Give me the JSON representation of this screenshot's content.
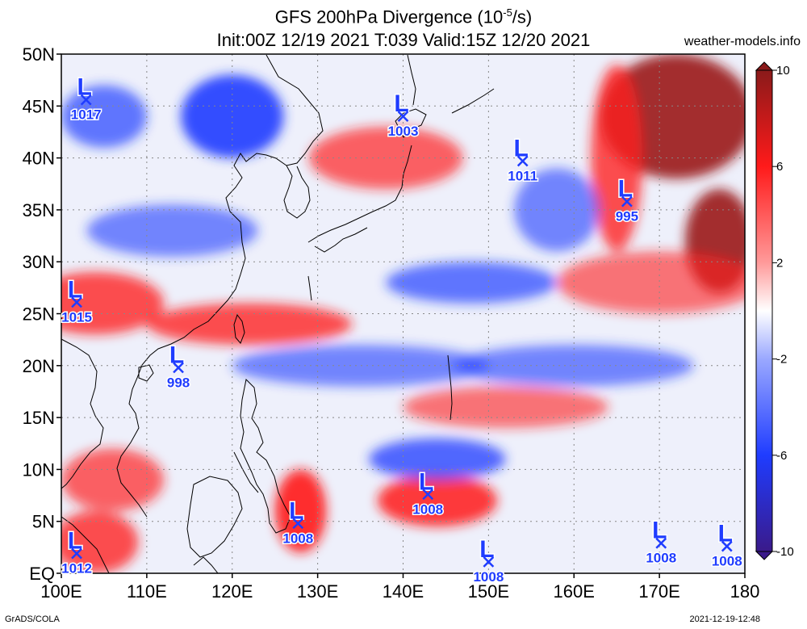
{
  "title": {
    "line1_prefix": "GFS 200hPa Divergence (10",
    "line1_exp": "-5",
    "line1_suffix": "/s)",
    "line2": "Init:00Z 12/19 2021 T:039 Valid:15Z 12/20 2021"
  },
  "site": "weather-models.info",
  "footer": {
    "left": "GrADS/COLA",
    "right": "2021-12-19-12:48"
  },
  "lat_labels": [
    {
      "value": 50,
      "text": "50N"
    },
    {
      "value": 45,
      "text": "45N"
    },
    {
      "value": 40,
      "text": "40N"
    },
    {
      "value": 35,
      "text": "35N"
    },
    {
      "value": 30,
      "text": "30N"
    },
    {
      "value": 25,
      "text": "25N"
    },
    {
      "value": 20,
      "text": "20N"
    },
    {
      "value": 15,
      "text": "15N"
    },
    {
      "value": 10,
      "text": "10N"
    },
    {
      "value": 5,
      "text": "5N"
    },
    {
      "value": 0,
      "text": "EQ"
    }
  ],
  "lon_labels": [
    {
      "value": 100,
      "text": "100E"
    },
    {
      "value": 110,
      "text": "110E"
    },
    {
      "value": 120,
      "text": "120E"
    },
    {
      "value": 130,
      "text": "130E"
    },
    {
      "value": 140,
      "text": "140E"
    },
    {
      "value": 150,
      "text": "150E"
    },
    {
      "value": 160,
      "text": "160E"
    },
    {
      "value": 170,
      "text": "170E"
    },
    {
      "value": 180,
      "text": "180"
    }
  ],
  "colorbar": {
    "min": -10,
    "max": 10,
    "ticks": [
      {
        "value": 10,
        "text": "10"
      },
      {
        "value": 6,
        "text": "6"
      },
      {
        "value": 2,
        "text": "2"
      },
      {
        "value": -2,
        "text": "-2"
      },
      {
        "value": -6,
        "text": "-6"
      },
      {
        "value": -10,
        "text": "-10"
      }
    ],
    "colors": {
      "low": "#3a1a8a",
      "neg": "#1f3cff",
      "zero": "#ffffff",
      "pos": "#ff1a1a",
      "high": "#9a1a1a"
    }
  },
  "lows": [
    {
      "lon": 102.9,
      "lat": 45.6,
      "value": "1017"
    },
    {
      "lon": 140.0,
      "lat": 44.0,
      "value": "1003"
    },
    {
      "lon": 154.0,
      "lat": 39.7,
      "value": "1011"
    },
    {
      "lon": 166.2,
      "lat": 35.8,
      "value": "995"
    },
    {
      "lon": 101.8,
      "lat": 26.1,
      "value": "1015"
    },
    {
      "lon": 113.7,
      "lat": 19.8,
      "value": "998"
    },
    {
      "lon": 142.9,
      "lat": 7.6,
      "value": "1008"
    },
    {
      "lon": 127.7,
      "lat": 4.8,
      "value": "1008"
    },
    {
      "lon": 101.8,
      "lat": 1.9,
      "value": "1012"
    },
    {
      "lon": 150.0,
      "lat": 1.1,
      "value": "1008"
    },
    {
      "lon": 170.2,
      "lat": 2.9,
      "value": "1008"
    },
    {
      "lon": 177.9,
      "lat": 2.6,
      "value": "1008"
    }
  ],
  "field_blobs": [
    {
      "lon": 172,
      "lat": 44,
      "rx": 9,
      "ry": 6,
      "v": 8
    },
    {
      "lon": 177,
      "lat": 32,
      "rx": 4,
      "ry": 5,
      "v": 9
    },
    {
      "lon": 165,
      "lat": 40,
      "rx": 3,
      "ry": 9,
      "v": 5
    },
    {
      "lon": 170,
      "lat": 28,
      "rx": 12,
      "ry": 3,
      "v": 3
    },
    {
      "lon": 120,
      "lat": 44,
      "rx": 6,
      "ry": 4,
      "v": -7
    },
    {
      "lon": 104,
      "lat": 26,
      "rx": 8,
      "ry": 3,
      "v": 5
    },
    {
      "lon": 122,
      "lat": 24,
      "rx": 12,
      "ry": 2,
      "v": 5
    },
    {
      "lon": 128,
      "lat": 6,
      "rx": 3,
      "ry": 4,
      "v": 7
    },
    {
      "lon": 144,
      "lat": 7,
      "rx": 7,
      "ry": 2.5,
      "v": 6
    },
    {
      "lon": 144,
      "lat": 11,
      "rx": 8,
      "ry": 2,
      "v": -5
    },
    {
      "lon": 148,
      "lat": 28,
      "rx": 10,
      "ry": 2,
      "v": -4
    },
    {
      "lon": 135,
      "lat": 20,
      "rx": 15,
      "ry": 2,
      "v": -3
    },
    {
      "lon": 160,
      "lat": 20,
      "rx": 14,
      "ry": 2,
      "v": -3
    },
    {
      "lon": 138,
      "lat": 40,
      "rx": 9,
      "ry": 3,
      "v": 4
    },
    {
      "lon": 106,
      "lat": 9,
      "rx": 6,
      "ry": 3,
      "v": 4
    },
    {
      "lon": 104,
      "lat": 3,
      "rx": 5,
      "ry": 3,
      "v": 5
    },
    {
      "lon": 113,
      "lat": 33,
      "rx": 10,
      "ry": 2.5,
      "v": -3
    },
    {
      "lon": 152,
      "lat": 16,
      "rx": 12,
      "ry": 2,
      "v": 3
    },
    {
      "lon": 105,
      "lat": 44,
      "rx": 5,
      "ry": 3,
      "v": -4
    },
    {
      "lon": 158,
      "lat": 35,
      "rx": 5,
      "ry": 4,
      "v": -3
    }
  ]
}
